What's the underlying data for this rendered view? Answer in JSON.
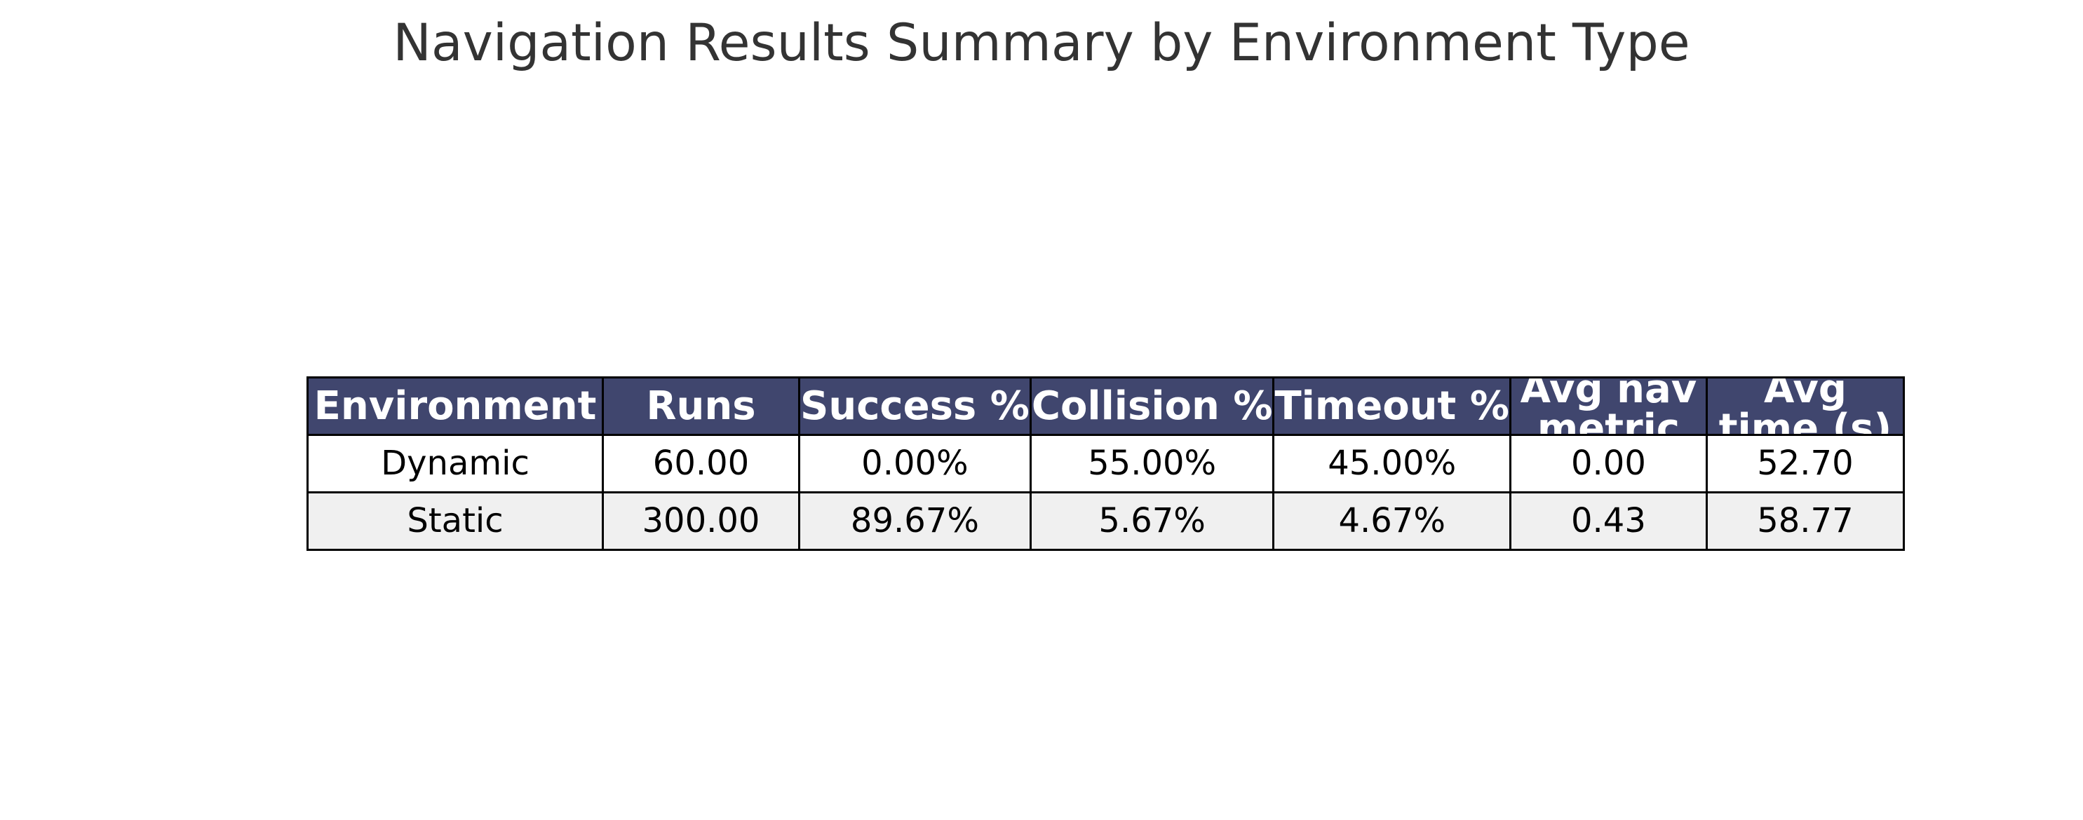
{
  "chart_data": {
    "type": "table",
    "title": "Navigation Results Summary by Environment Type",
    "columns": [
      "Environment",
      "Runs",
      "Success %",
      "Collision %",
      "Timeout %",
      "Avg nav metric",
      "Avg time (s)"
    ],
    "rows": [
      [
        "Dynamic",
        "60.00",
        "0.00%",
        "55.00%",
        "45.00%",
        "0.00",
        "52.70"
      ],
      [
        "Static",
        "300.00",
        "89.67%",
        "5.67%",
        "4.67%",
        "0.43",
        "58.77"
      ]
    ]
  },
  "colors": {
    "header_background": "#40466e",
    "header_text": "#ffffff",
    "row_alt_background": "#f0f0f0",
    "border": "#000000",
    "title_text": "#333333"
  }
}
